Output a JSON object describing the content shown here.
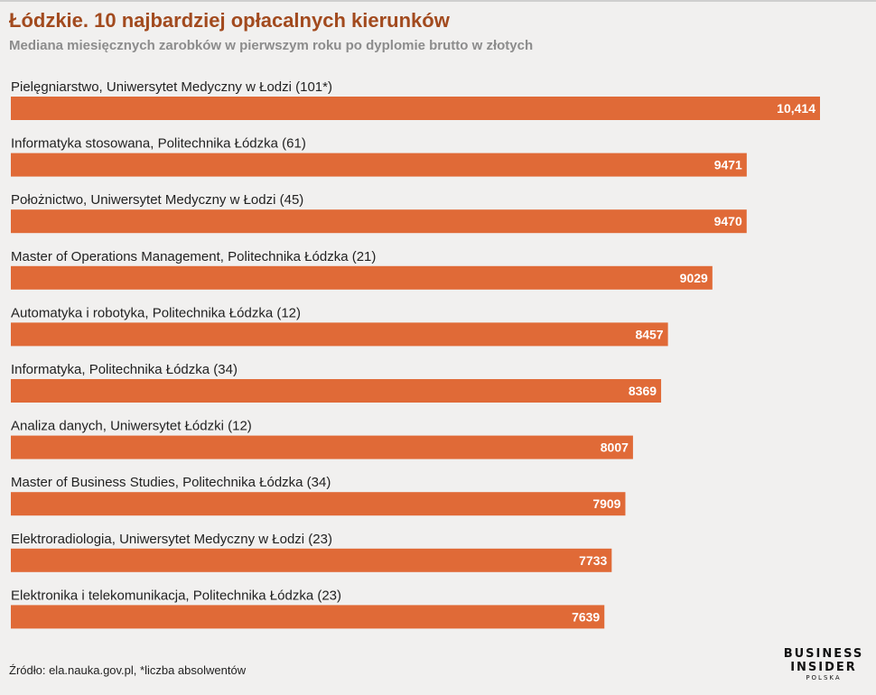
{
  "header": {
    "title": "Łódzkie. 10 najbardziej opłacalnych kierunków",
    "subtitle": "Mediana miesięcznych zarobków w pierwszym roku po dyplomie brutto w złotych"
  },
  "chart_data": {
    "type": "bar",
    "orientation": "horizontal",
    "categories": [
      "Pielęgniarstwo, Uniwersytet Medyczny w Łodzi (101*)",
      "Informatyka stosowana, Politechnika Łódzka (61)",
      "Położnictwo, Uniwersytet Medyczny w Łodzi (45)",
      "Master of Operations Management, Politechnika Łódzka (21)",
      "Automatyka i robotyka, Politechnika Łódzka (12)",
      "Informatyka, Politechnika Łódzka (34)",
      "Analiza danych, Uniwersytet Łódzki (12)",
      "Master of Business Studies, Politechnika Łódzka (34)",
      "Elektroradiologia, Uniwersytet Medyczny w Łodzi (23)",
      "Elektronika i telekomunikacja, Politechnika Łódzka (23)"
    ],
    "values": [
      10414,
      9471,
      9470,
      9029,
      8457,
      8369,
      8007,
      7909,
      7733,
      7639
    ],
    "value_labels": [
      "10,414",
      "9471",
      "9470",
      "9029",
      "8457",
      "8369",
      "8007",
      "7909",
      "7733",
      "7639"
    ],
    "bar_color": "#e06a37",
    "title_color": "#a24a1e",
    "xlim": [
      0,
      10414
    ],
    "grid": false,
    "legend": "none"
  },
  "footer": {
    "source": "Źródło: ela.nauka.gov.pl, *liczba absolwentów"
  },
  "logo": {
    "line1": "BUSINESS",
    "line2": "INSIDER",
    "line3": "POLSKA"
  }
}
